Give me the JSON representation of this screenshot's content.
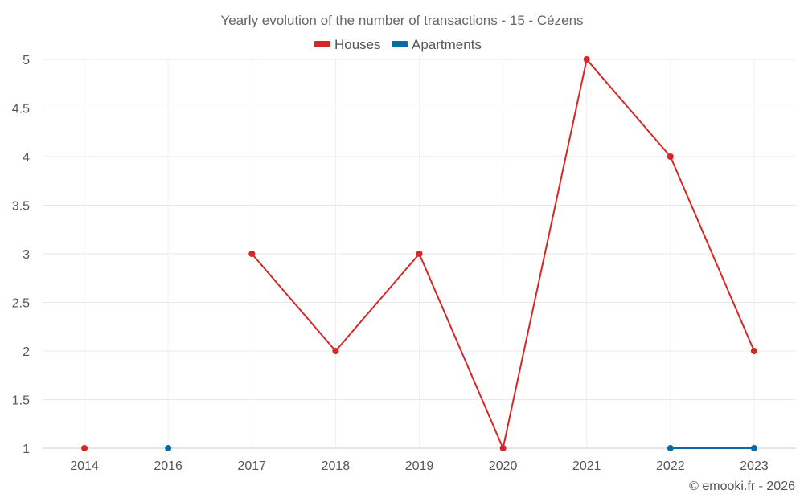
{
  "chart_data": {
    "type": "line",
    "title": "Yearly evolution of the number of transactions - 15 - Cézens",
    "categories": [
      "2014",
      "2016",
      "2017",
      "2018",
      "2019",
      "2020",
      "2021",
      "2022",
      "2023"
    ],
    "series": [
      {
        "name": "Houses",
        "color": "#d62728",
        "values": [
          1,
          null,
          3,
          2,
          3,
          1,
          5,
          4,
          2
        ]
      },
      {
        "name": "Apartments",
        "color": "#0b6aa2",
        "values": [
          null,
          1,
          null,
          null,
          null,
          null,
          null,
          1,
          1
        ]
      }
    ],
    "ylim": [
      1,
      5
    ],
    "yticks": [
      "1",
      "1.5",
      "2",
      "2.5",
      "3",
      "3.5",
      "4",
      "4.5",
      "5"
    ],
    "xlabel": "",
    "ylabel": "",
    "grid": true,
    "legend": "top-center"
  },
  "credit": "© emooki.fr - 2026"
}
